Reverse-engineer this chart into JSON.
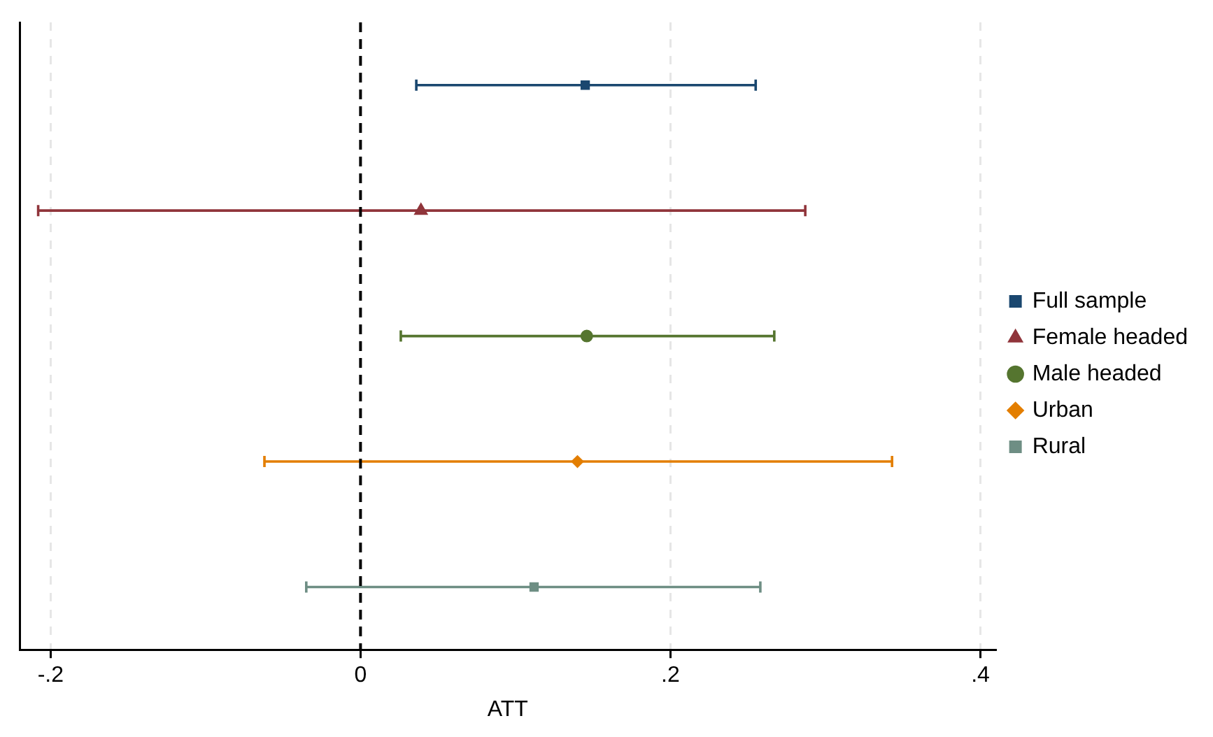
{
  "chart_data": {
    "type": "scatter",
    "orientation": "horizontal",
    "xlabel": "ATT",
    "categories": [
      null,
      null,
      null,
      null,
      null
    ],
    "series": [
      {
        "name": "Full sample",
        "color": "#1a476f",
        "marker": "square",
        "values": [
          0.145,
          null,
          null,
          null,
          null
        ],
        "errors": [
          [
            0.036,
            0.255
          ],
          null,
          null,
          null,
          null
        ]
      },
      {
        "name": "Female headed",
        "color": "#90353b",
        "marker": "triangle",
        "values": [
          null,
          0.039,
          null,
          null,
          null
        ],
        "errors": [
          null,
          [
            -0.208,
            0.287
          ],
          null,
          null,
          null
        ]
      },
      {
        "name": "Male headed",
        "color": "#55752f",
        "marker": "circle",
        "values": [
          null,
          null,
          0.146,
          null,
          null
        ],
        "errors": [
          null,
          null,
          [
            0.026,
            0.267
          ],
          null,
          null
        ]
      },
      {
        "name": "Urban",
        "color": "#e37e00",
        "marker": "diamond",
        "values": [
          null,
          null,
          null,
          0.14,
          null
        ],
        "errors": [
          null,
          null,
          null,
          [
            -0.062,
            0.343
          ],
          null
        ]
      },
      {
        "name": "Rural",
        "color": "#6e8e84",
        "marker": "square",
        "values": [
          null,
          null,
          null,
          null,
          0.112
        ],
        "errors": [
          null,
          null,
          null,
          null,
          [
            -0.035,
            0.258
          ]
        ]
      }
    ],
    "xlim": [
      -0.22,
      0.41
    ],
    "xticks": [
      {
        "value": -0.2,
        "label": "-.2"
      },
      0,
      {
        "value": 0.2,
        "label": ".2"
      },
      {
        "value": 0.4,
        "label": ".4"
      }
    ],
    "ref_lines": [
      {
        "axis": "x",
        "value": 0,
        "color": "#000000",
        "line_style": "dashed"
      }
    ],
    "grid": "x",
    "legend": "right",
    "tick_labels": "x"
  }
}
